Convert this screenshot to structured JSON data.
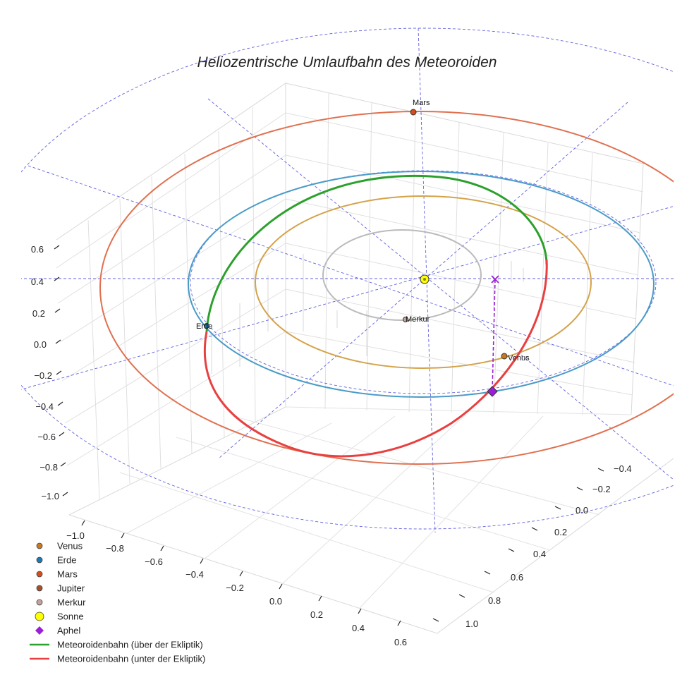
{
  "chart_data": {
    "type": "3d-orbit-plot",
    "title": "Heliozentrische Umlaufbahn des Meteoroiden",
    "axes": {
      "x": {
        "label": "",
        "range": [
          -1.0,
          0.6
        ],
        "ticks": [
          "−1.0",
          "−0.8",
          "−0.6",
          "−0.4",
          "−0.2",
          "0.0",
          "0.2",
          "0.4",
          "0.6"
        ]
      },
      "y": {
        "label": "",
        "range": [
          -0.4,
          1.0
        ],
        "ticks": [
          "−0.4",
          "−0.2",
          "0.0",
          "0.2",
          "0.4",
          "0.6",
          "0.8",
          "1.0"
        ]
      },
      "z": {
        "label": "",
        "range": [
          -1.0,
          0.6
        ],
        "ticks": [
          "−1.0",
          "−0.8",
          "−0.6",
          "−0.4",
          "−0.2",
          "0.0",
          "0.2",
          "0.4",
          "0.6"
        ]
      }
    },
    "orbits": [
      {
        "name": "Merkur",
        "radius_au": 0.39,
        "color": "#bbbbbb"
      },
      {
        "name": "Venus",
        "radius_au": 0.72,
        "color": "#d4a24a"
      },
      {
        "name": "Erde",
        "radius_au": 1.0,
        "color": "#4a9bc8"
      },
      {
        "name": "Mars",
        "radius_au": 1.52,
        "color": "#e07050"
      }
    ],
    "bodies": [
      {
        "name": "Venus",
        "color": "#c87822",
        "label": "Venus"
      },
      {
        "name": "Erde",
        "color": "#1f77b4",
        "label": "Erde"
      },
      {
        "name": "Mars",
        "color": "#d64c1a",
        "label": "Mars"
      },
      {
        "name": "Jupiter",
        "color": "#a0522d",
        "label": ""
      },
      {
        "name": "Merkur",
        "color": "#c4a39c",
        "label": "Merkur"
      },
      {
        "name": "Sonne",
        "color": "#ffff00",
        "label": ""
      }
    ],
    "meteoroid": {
      "above_color": "#2ca02c",
      "below_color": "#e84040",
      "aphelion_color": "#9b1fd6",
      "aphelion_label": "Aphel"
    },
    "legend": [
      {
        "label": "Venus",
        "symbol": "circle",
        "color": "#c87822"
      },
      {
        "label": "Erde",
        "symbol": "circle",
        "color": "#1f77b4"
      },
      {
        "label": "Mars",
        "symbol": "circle",
        "color": "#d64c1a"
      },
      {
        "label": "Jupiter",
        "symbol": "circle",
        "color": "#a0522d"
      },
      {
        "label": "Merkur",
        "symbol": "circle",
        "color": "#c4a39c"
      },
      {
        "label": "Sonne",
        "symbol": "circle-large",
        "color": "#ffff00"
      },
      {
        "label": "Aphel",
        "symbol": "diamond",
        "color": "#9b1fd6"
      },
      {
        "label": "Meteoroidenbahn (über der Ekliptik)",
        "symbol": "line",
        "color": "#2ca02c"
      },
      {
        "label": "Meteoroidenbahn (unter der Ekliptik)",
        "symbol": "line",
        "color": "#e84040"
      }
    ]
  }
}
